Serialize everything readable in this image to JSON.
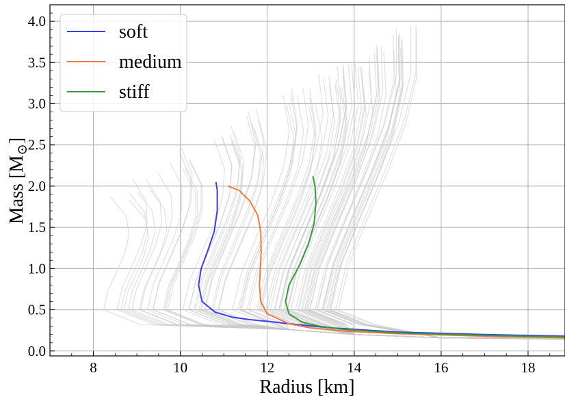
{
  "chart_data": {
    "type": "line",
    "xlabel": "Radius [km]",
    "ylabel_main": "Mass [M",
    "ylabel_sub": "⊙",
    "ylabel_close": "]",
    "xlim": [
      7.0,
      18.85
    ],
    "ylim": [
      -0.06,
      4.2
    ],
    "x_ticks": [
      8,
      10,
      12,
      14,
      16,
      18
    ],
    "x_tick_labels": [
      "8",
      "10",
      "12",
      "14",
      "16",
      "18"
    ],
    "y_ticks": [
      0.0,
      0.5,
      1.0,
      1.5,
      2.0,
      2.5,
      3.0,
      3.5,
      4.0
    ],
    "y_tick_labels": [
      "0.0",
      "0.5",
      "1.0",
      "1.5",
      "2.0",
      "2.5",
      "3.0",
      "3.5",
      "4.0"
    ],
    "grid": true,
    "legend_position": "top-left",
    "background_ensemble": {
      "color": "#c8c8c8",
      "description_count": 80
    },
    "series": [
      {
        "name": "soft",
        "color": "#3b3bf0",
        "x": [
          18.85,
          17.0,
          15.0,
          13.5,
          12.5,
          12.0,
          11.6,
          11.2,
          10.8,
          10.5,
          10.42,
          10.48,
          10.62,
          10.78,
          10.85,
          10.85,
          10.82
        ],
        "y": [
          0.18,
          0.2,
          0.23,
          0.28,
          0.33,
          0.36,
          0.38,
          0.41,
          0.47,
          0.6,
          0.8,
          1.0,
          1.2,
          1.45,
          1.7,
          1.95,
          2.05
        ]
      },
      {
        "name": "medium",
        "color": "#f07a40",
        "x": [
          18.85,
          17.0,
          15.0,
          13.8,
          13.0,
          12.5,
          12.0,
          11.85,
          11.82,
          11.84,
          11.86,
          11.85,
          11.78,
          11.6,
          11.35,
          11.1
        ],
        "y": [
          0.16,
          0.18,
          0.21,
          0.24,
          0.28,
          0.33,
          0.45,
          0.6,
          0.8,
          1.0,
          1.2,
          1.45,
          1.65,
          1.82,
          1.95,
          2.0
        ]
      },
      {
        "name": "stiff",
        "color": "#3a9a3a",
        "x": [
          18.85,
          17.0,
          15.0,
          13.8,
          13.2,
          12.8,
          12.5,
          12.42,
          12.5,
          12.75,
          12.95,
          13.08,
          13.12,
          13.1,
          13.05
        ],
        "y": [
          0.17,
          0.19,
          0.22,
          0.26,
          0.3,
          0.35,
          0.45,
          0.6,
          0.8,
          1.05,
          1.3,
          1.55,
          1.8,
          2.0,
          2.12
        ]
      }
    ]
  }
}
